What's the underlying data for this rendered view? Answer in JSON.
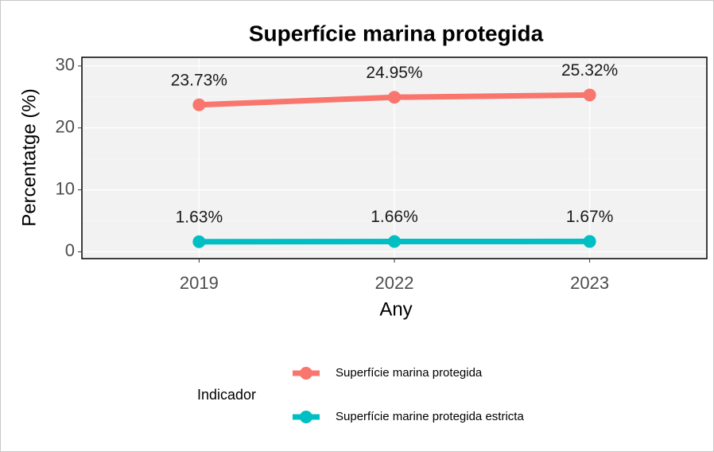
{
  "chart_data": {
    "type": "line",
    "title": "Superfície marina protegida",
    "xlabel": "Any",
    "ylabel": "Percentatge (%)",
    "categories": [
      "2019",
      "2022",
      "2023"
    ],
    "series": [
      {
        "name": "Superfície marina protegida",
        "color": "#F8766D",
        "values": [
          23.73,
          24.95,
          25.32
        ],
        "value_labels": [
          "23.73%",
          "24.95%",
          "25.32%"
        ]
      },
      {
        "name": "Superfície marine protegida estricta",
        "color": "#00BFC4",
        "values": [
          1.63,
          1.66,
          1.67
        ],
        "value_labels": [
          "1.63%",
          "1.66%",
          "1.67%"
        ]
      }
    ],
    "ylim": [
      -1.1,
      31.4
    ],
    "yticks": [
      0,
      10,
      20,
      30
    ],
    "grid": true,
    "legend_title": "Indicador",
    "legend_position": "bottom"
  }
}
